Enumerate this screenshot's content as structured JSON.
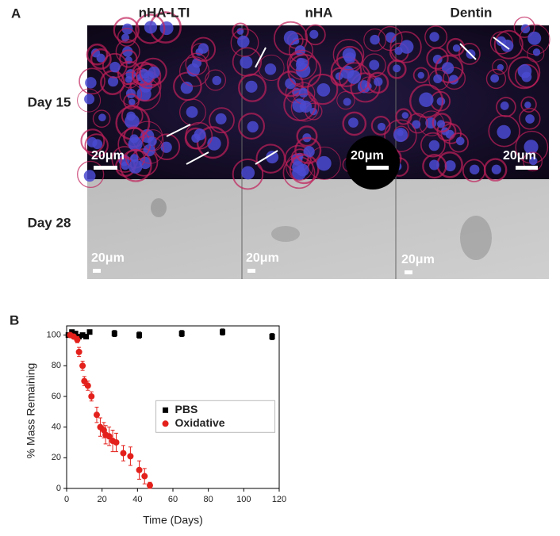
{
  "panel_a": {
    "label": "A",
    "columns": [
      "nHA-LTI",
      "nHA",
      "Dentin"
    ],
    "rows": [
      "Day 15",
      "Day 28"
    ],
    "scale_bars": [
      "20μm",
      "20μm",
      "20μm",
      "20μm",
      "20μm",
      "20μm"
    ]
  },
  "panel_b": {
    "label": "B"
  },
  "chart_data": {
    "type": "scatter",
    "xlabel": "Time (Days)",
    "ylabel": "% Mass Remaining",
    "xlim": [
      0,
      120
    ],
    "xticks": [
      0,
      20,
      40,
      60,
      80,
      100,
      120
    ],
    "ylim": [
      0,
      106
    ],
    "yticks": [
      0,
      20,
      40,
      60,
      80,
      100
    ],
    "legend": "center",
    "series": [
      {
        "name": "PBS",
        "color": "#000000",
        "marker": "square",
        "x": [
          1,
          3,
          5,
          7,
          9,
          11,
          13,
          27,
          41,
          65,
          88,
          116
        ],
        "values": [
          100,
          102,
          101,
          99,
          100,
          99,
          102,
          101,
          100,
          101,
          102,
          99
        ],
        "errors": [
          1,
          1,
          1,
          1,
          1,
          1,
          1,
          2,
          2,
          2,
          2,
          2
        ]
      },
      {
        "name": "Oxidative",
        "color": "#e3201b",
        "marker": "circle",
        "x": [
          2,
          4,
          6,
          7,
          9,
          10,
          12,
          14,
          17,
          19,
          21,
          22,
          24,
          26,
          28,
          32,
          36,
          41,
          44,
          47
        ],
        "values": [
          100,
          99,
          97,
          89,
          80,
          70,
          67,
          60,
          48,
          40,
          38,
          35,
          34,
          31,
          30,
          23,
          21,
          12,
          8,
          2
        ],
        "errors": [
          1,
          1,
          2,
          3,
          3,
          3,
          3,
          3,
          5,
          6,
          5,
          6,
          6,
          7,
          6,
          5,
          6,
          6,
          5,
          2
        ]
      }
    ]
  }
}
